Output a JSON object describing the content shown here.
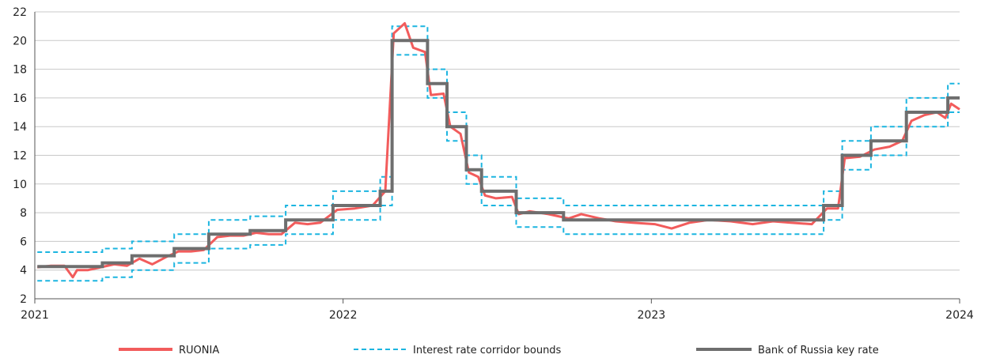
{
  "chart_data": {
    "type": "line",
    "title": "",
    "xlabel": "",
    "ylabel": "",
    "xlim": [
      "2021-01-01",
      "2024-01-01"
    ],
    "ylim": [
      2,
      22
    ],
    "grid": "horizontal",
    "legend_position": "bottom",
    "x_tick_labels": [
      "2021",
      "2022",
      "2023",
      "2024"
    ],
    "y_tick_labels": [
      "2",
      "4",
      "6",
      "8",
      "10",
      "12",
      "14",
      "16",
      "18",
      "20",
      "22"
    ],
    "colors": {
      "ruonia": "#f25c5c",
      "corridor": "#1cb5e0",
      "key_rate": "#6e6e6e"
    },
    "series": [
      {
        "name": "Bank of Russia key rate",
        "style": "solid-grey-step",
        "steps": [
          [
            "2021-01-04",
            4.25
          ],
          [
            "2021-03-22",
            4.5
          ],
          [
            "2021-04-26",
            5.0
          ],
          [
            "2021-06-15",
            5.5
          ],
          [
            "2021-07-26",
            6.5
          ],
          [
            "2021-09-13",
            6.75
          ],
          [
            "2021-10-25",
            7.5
          ],
          [
            "2021-12-20",
            8.5
          ],
          [
            "2022-02-14",
            9.5
          ],
          [
            "2022-02-28",
            20.0
          ],
          [
            "2022-04-11",
            17.0
          ],
          [
            "2022-05-04",
            14.0
          ],
          [
            "2022-05-27",
            11.0
          ],
          [
            "2022-06-14",
            9.5
          ],
          [
            "2022-07-25",
            8.0
          ],
          [
            "2022-09-19",
            7.5
          ],
          [
            "2023-07-24",
            8.5
          ],
          [
            "2023-08-15",
            12.0
          ],
          [
            "2023-09-18",
            13.0
          ],
          [
            "2023-10-30",
            15.0
          ],
          [
            "2023-12-18",
            16.0
          ],
          [
            "2024-01-01",
            16.0
          ]
        ]
      },
      {
        "name": "Interest rate corridor bounds",
        "style": "dashed-blue-step",
        "upper_offset": 1.0,
        "lower_offset": -1.0
      },
      {
        "name": "RUONIA",
        "style": "solid-red",
        "points": [
          [
            "2021-01-04",
            4.2
          ],
          [
            "2021-01-20",
            4.3
          ],
          [
            "2021-02-05",
            4.3
          ],
          [
            "2021-02-15",
            3.5
          ],
          [
            "2021-02-20",
            4.0
          ],
          [
            "2021-03-05",
            4.0
          ],
          [
            "2021-03-20",
            4.2
          ],
          [
            "2021-04-05",
            4.4
          ],
          [
            "2021-04-20",
            4.3
          ],
          [
            "2021-05-05",
            4.8
          ],
          [
            "2021-05-20",
            4.4
          ],
          [
            "2021-06-05",
            4.9
          ],
          [
            "2021-06-20",
            5.3
          ],
          [
            "2021-07-05",
            5.3
          ],
          [
            "2021-07-20",
            5.4
          ],
          [
            "2021-08-05",
            6.3
          ],
          [
            "2021-08-20",
            6.4
          ],
          [
            "2021-09-05",
            6.4
          ],
          [
            "2021-09-20",
            6.6
          ],
          [
            "2021-10-05",
            6.5
          ],
          [
            "2021-10-20",
            6.5
          ],
          [
            "2021-11-05",
            7.3
          ],
          [
            "2021-11-20",
            7.2
          ],
          [
            "2021-12-05",
            7.3
          ],
          [
            "2021-12-25",
            8.2
          ],
          [
            "2022-01-15",
            8.3
          ],
          [
            "2022-02-05",
            8.5
          ],
          [
            "2022-02-20",
            9.5
          ],
          [
            "2022-03-02",
            20.5
          ],
          [
            "2022-03-15",
            21.2
          ],
          [
            "2022-03-25",
            19.5
          ],
          [
            "2022-04-08",
            19.2
          ],
          [
            "2022-04-15",
            16.2
          ],
          [
            "2022-04-30",
            16.3
          ],
          [
            "2022-05-08",
            14.0
          ],
          [
            "2022-05-20",
            13.5
          ],
          [
            "2022-05-30",
            10.8
          ],
          [
            "2022-06-10",
            10.5
          ],
          [
            "2022-06-18",
            9.2
          ],
          [
            "2022-07-01",
            9.0
          ],
          [
            "2022-07-20",
            9.1
          ],
          [
            "2022-07-28",
            7.9
          ],
          [
            "2022-08-10",
            8.1
          ],
          [
            "2022-09-01",
            7.9
          ],
          [
            "2022-09-25",
            7.6
          ],
          [
            "2022-10-10",
            7.9
          ],
          [
            "2022-11-01",
            7.6
          ],
          [
            "2022-11-20",
            7.4
          ],
          [
            "2022-12-10",
            7.3
          ],
          [
            "2023-01-05",
            7.2
          ],
          [
            "2023-01-25",
            6.9
          ],
          [
            "2023-02-15",
            7.3
          ],
          [
            "2023-03-10",
            7.5
          ],
          [
            "2023-04-05",
            7.4
          ],
          [
            "2023-05-01",
            7.2
          ],
          [
            "2023-05-25",
            7.4
          ],
          [
            "2023-06-15",
            7.3
          ],
          [
            "2023-07-10",
            7.2
          ],
          [
            "2023-07-28",
            8.3
          ],
          [
            "2023-08-10",
            8.3
          ],
          [
            "2023-08-18",
            11.8
          ],
          [
            "2023-09-05",
            11.9
          ],
          [
            "2023-09-22",
            12.4
          ],
          [
            "2023-10-10",
            12.6
          ],
          [
            "2023-10-25",
            13.0
          ],
          [
            "2023-11-05",
            14.4
          ],
          [
            "2023-11-20",
            14.8
          ],
          [
            "2023-12-05",
            15.0
          ],
          [
            "2023-12-15",
            14.6
          ],
          [
            "2023-12-22",
            15.6
          ],
          [
            "2024-01-01",
            15.2
          ]
        ]
      }
    ],
    "legend": [
      {
        "label": "RUONIA",
        "style": "solid-red"
      },
      {
        "label": "Interest rate corridor bounds",
        "style": "dashed-blue"
      },
      {
        "label": "Bank of Russia key rate",
        "style": "solid-grey"
      }
    ]
  }
}
